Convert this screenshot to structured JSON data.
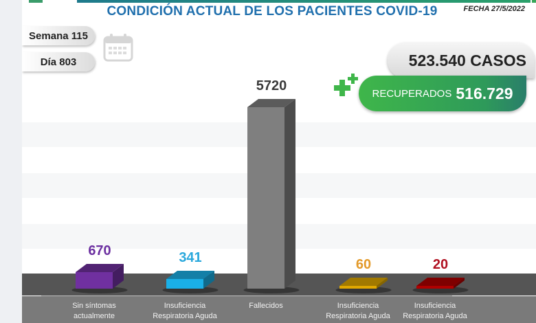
{
  "header": {
    "title": "CONDICIÓN ACTUAL DE LOS PACIENTES COVID-19",
    "fecha": "FECHA 27/5/2022",
    "semana": "Semana 115",
    "dia": "Día 803"
  },
  "summary": {
    "casos": "523.540 CASOS",
    "recuperados_label": "RECUPERADOS",
    "recuperados_value": "516.729"
  },
  "icons": {
    "calendar": "calendar-icon",
    "plus": "plus-icon"
  },
  "colors": {
    "title": "#1f6fad",
    "recuperados": "#3fb64a"
  },
  "chart_data": {
    "type": "bar",
    "title": "CONDICIÓN ACTUAL DE LOS PACIENTES COVID-19",
    "xlabel": "",
    "ylabel": "",
    "grid": false,
    "categories": [
      [
        "Sin síntomas",
        "actualmente"
      ],
      [
        "Insuficiencia",
        "Respiratoria Aguda"
      ],
      [
        "Fallecidos",
        ""
      ],
      [
        "Insuficiencia",
        "Respiratoria Aguda"
      ],
      [
        "Insuficiencia",
        "Respiratoria Aguda"
      ]
    ],
    "values": [
      670,
      341,
      5720,
      60,
      20
    ],
    "value_labels": [
      "670",
      "341",
      "5720",
      "60",
      "20"
    ],
    "colors": [
      "#7030a0",
      "#1ab0e8",
      "#7f7f7f",
      "#e0a800",
      "#b00000"
    ],
    "label_colors": [
      "#6b2fa0",
      "#2aa8dc",
      "#3a3a3a",
      "#e39a2a",
      "#b01020"
    ]
  }
}
